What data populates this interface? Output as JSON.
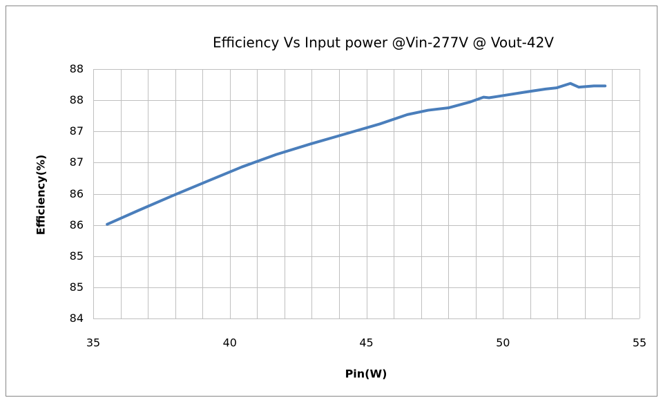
{
  "chart_data": {
    "type": "line",
    "title": "Efficiency Vs Input power  @Vin-277V @ Vout-42V",
    "x_label": "Pin(W)",
    "y_label": "Efficiency(%)",
    "x": [
      35.51,
      36.64,
      37.91,
      39.17,
      40.44,
      41.7,
      42.96,
      44.23,
      45.49,
      46.5,
      47.26,
      48.02,
      48.78,
      49.29,
      49.49,
      49.79,
      50.8,
      51.56,
      51.97,
      52.47,
      52.78,
      53.33,
      53.74
    ],
    "series": [
      {
        "color": "#4a7ebb",
        "values": [
          85.51,
          85.73,
          85.97,
          86.2,
          86.43,
          86.63,
          86.8,
          86.96,
          87.12,
          87.27,
          87.34,
          87.38,
          87.47,
          87.55,
          87.54,
          87.56,
          87.63,
          87.68,
          87.7,
          87.77,
          87.71,
          87.73,
          87.73
        ]
      }
    ],
    "xlim": [
      35,
      55
    ],
    "xticks": [
      35,
      40,
      45,
      50,
      55
    ],
    "xgrid": [
      35,
      36,
      37,
      38,
      39,
      40,
      41,
      42,
      43,
      44,
      45,
      46,
      47,
      48,
      49,
      50,
      51,
      52,
      53,
      54,
      55
    ],
    "ylim": [
      84,
      88
    ],
    "yticks": [
      84,
      {
        "value": 84.5,
        "label": "85"
      },
      85,
      {
        "value": 85.5,
        "label": "86"
      },
      86,
      {
        "value": 86.5,
        "label": "87"
      },
      87,
      {
        "value": 87.5,
        "label": "88"
      },
      88
    ],
    "grid": true
  }
}
